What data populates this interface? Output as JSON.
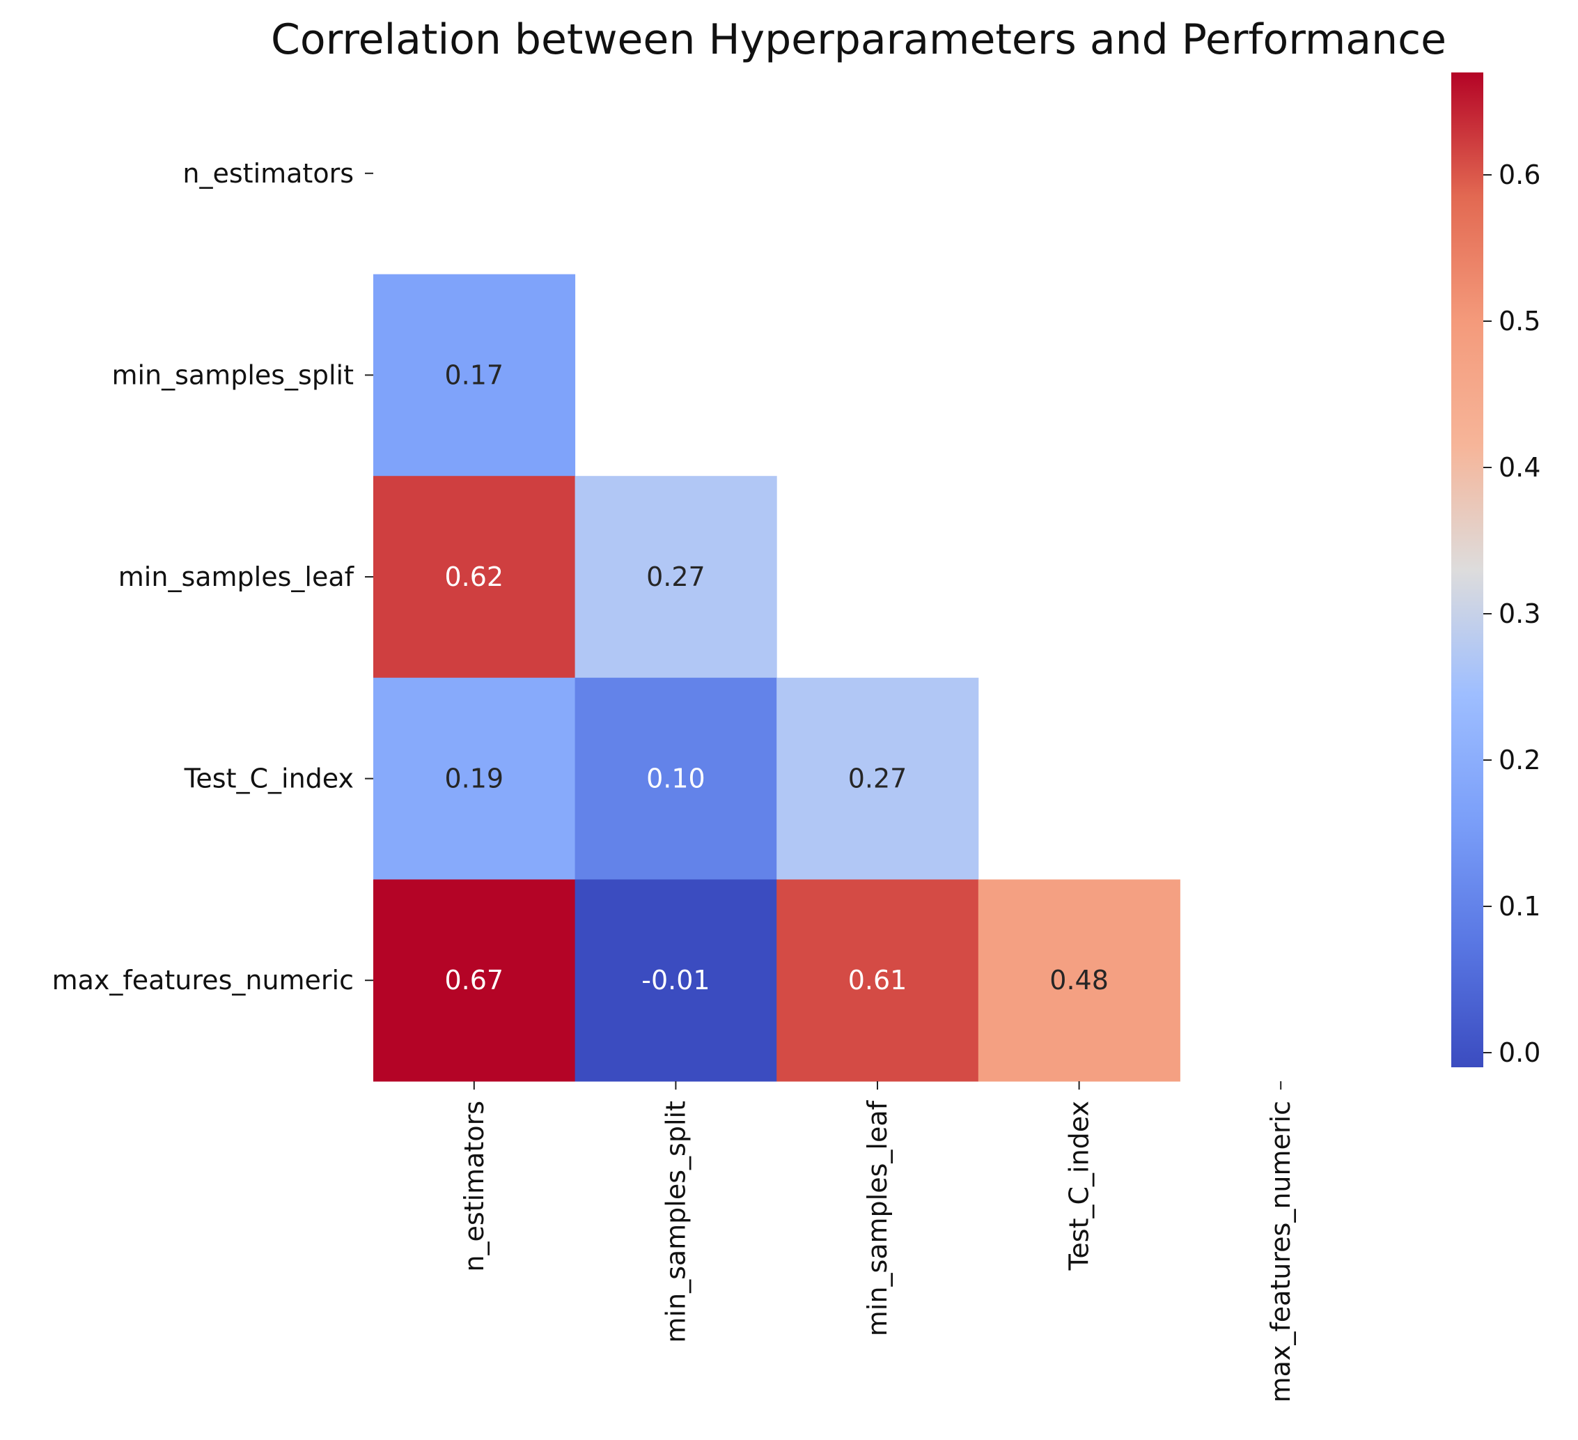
{
  "chart_data": {
    "type": "heatmap",
    "title": "Correlation between Hyperparameters and Performance",
    "xlabel": "",
    "ylabel": "",
    "rows": [
      "n_estimators",
      "min_samples_split",
      "min_samples_leaf",
      "Test_C_index",
      "max_features_numeric"
    ],
    "columns": [
      "n_estimators",
      "min_samples_split",
      "min_samples_leaf",
      "Test_C_index",
      "max_features_numeric"
    ],
    "mask": "upper-triangle-including-diagonal",
    "cells": [
      {
        "row": 1,
        "col": 0,
        "value": 0.17,
        "label": "0.17"
      },
      {
        "row": 2,
        "col": 0,
        "value": 0.62,
        "label": "0.62"
      },
      {
        "row": 2,
        "col": 1,
        "value": 0.27,
        "label": "0.27"
      },
      {
        "row": 3,
        "col": 0,
        "value": 0.19,
        "label": "0.19"
      },
      {
        "row": 3,
        "col": 1,
        "value": 0.1,
        "label": "0.10"
      },
      {
        "row": 3,
        "col": 2,
        "value": 0.27,
        "label": "0.27"
      },
      {
        "row": 4,
        "col": 0,
        "value": 0.67,
        "label": "0.67"
      },
      {
        "row": 4,
        "col": 1,
        "value": -0.01,
        "label": "-0.01"
      },
      {
        "row": 4,
        "col": 2,
        "value": 0.61,
        "label": "0.61"
      },
      {
        "row": 4,
        "col": 3,
        "value": 0.48,
        "label": "0.48"
      }
    ],
    "colormap": "coolwarm",
    "colorbar": {
      "range": [
        -0.01,
        0.67
      ],
      "ticks": [
        0.0,
        0.1,
        0.2,
        0.3,
        0.4,
        0.5,
        0.6
      ],
      "tick_labels": [
        "0.0",
        "0.1",
        "0.2",
        "0.3",
        "0.4",
        "0.5",
        "0.6"
      ]
    },
    "grid": false,
    "legend": "colorbar-right"
  }
}
